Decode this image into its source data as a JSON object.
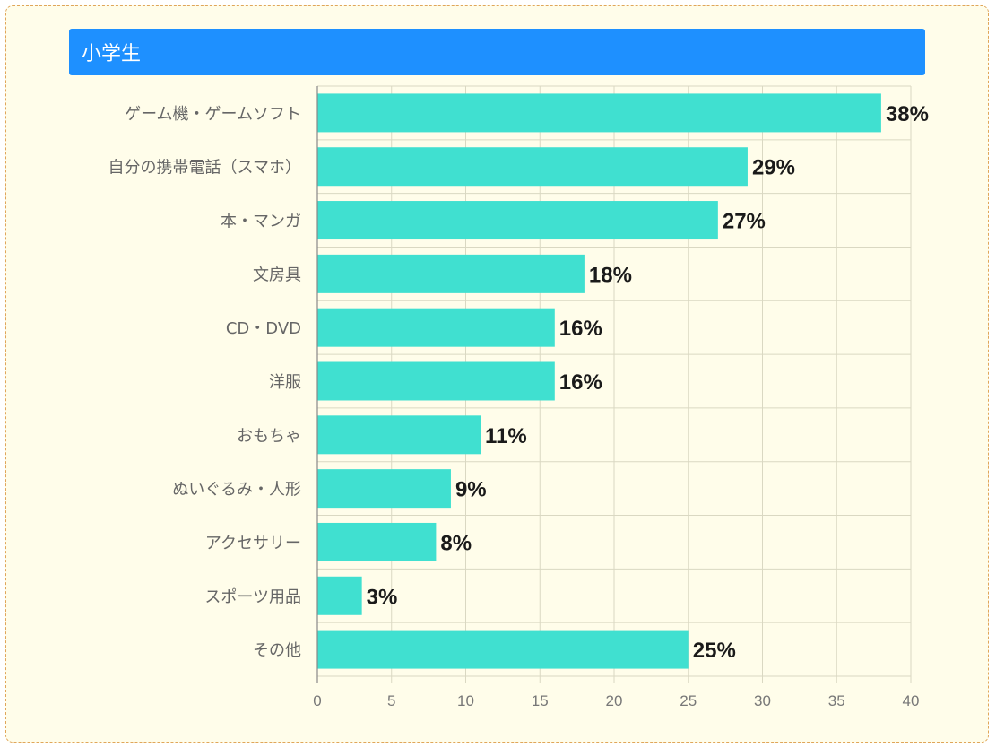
{
  "panel": {
    "title": "小学生"
  },
  "colors": {
    "bar": "#40e0d0",
    "header": "#1e90ff",
    "background": "#fffdea",
    "grid": "#dad8c2"
  },
  "chart_data": {
    "type": "bar",
    "orientation": "horizontal",
    "title": "",
    "xlabel": "",
    "ylabel": "",
    "xlim": [
      0,
      40
    ],
    "xticks": [
      0,
      5,
      10,
      15,
      20,
      25,
      30,
      35,
      40
    ],
    "grid": true,
    "categories": [
      "ゲーム機・ゲームソフト",
      "自分の携帯電話（スマホ）",
      "本・マンガ",
      "文房具",
      "CD・DVD",
      "洋服",
      "おもちゃ",
      "ぬいぐるみ・人形",
      "アクセサリー",
      "スポーツ用品",
      "その他"
    ],
    "values": [
      38,
      29,
      27,
      18,
      16,
      16,
      11,
      9,
      8,
      3,
      25
    ],
    "value_labels": [
      "38%",
      "29%",
      "27%",
      "18%",
      "16%",
      "16%",
      "11%",
      "9%",
      "8%",
      "3%",
      "25%"
    ]
  }
}
